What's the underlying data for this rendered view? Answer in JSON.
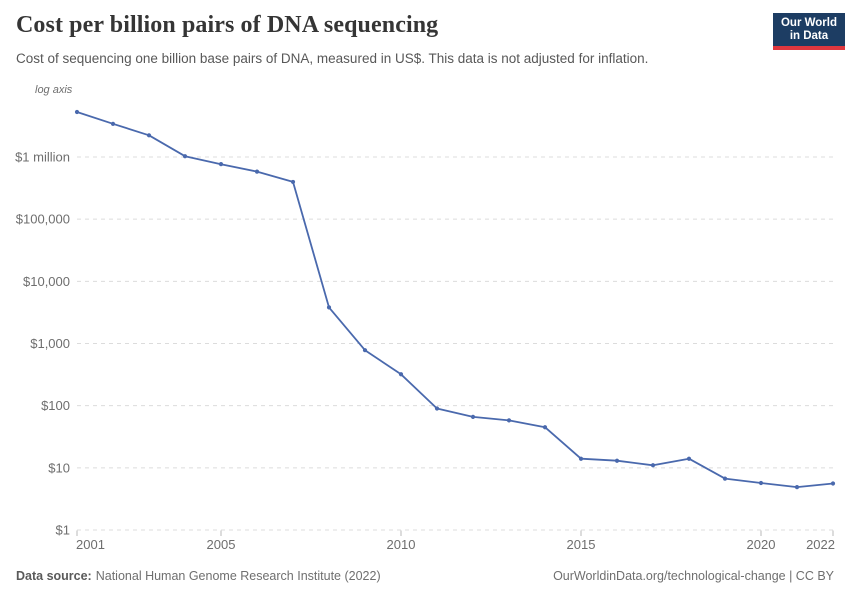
{
  "header": {
    "title": "Cost per billion pairs of DNA sequencing",
    "subtitle": "Cost of sequencing one billion base pairs of DNA, measured in US$. This data is not adjusted for inflation."
  },
  "logo": {
    "line1": "Our World",
    "line2": "in Data",
    "bg_color": "#1d3d63",
    "accent_color": "#e0373e"
  },
  "chart_data": {
    "type": "line",
    "title": "Cost per billion pairs of DNA sequencing",
    "scale": "log",
    "scale_note": "log axis",
    "xlabel": "",
    "ylabel": "",
    "x": [
      2001,
      2002,
      2003,
      2004,
      2005,
      2006,
      2007,
      2008,
      2009,
      2010,
      2011,
      2012,
      2013,
      2014,
      2015,
      2016,
      2017,
      2018,
      2019,
      2020,
      2021,
      2022
    ],
    "values": [
      5292390,
      3413800,
      2230980,
      1028850,
      766730,
      581920,
      397090,
      3810,
      780,
      320,
      90,
      66,
      58,
      45,
      14,
      13,
      11,
      14,
      6.7,
      5.7,
      4.9,
      5.6
    ],
    "y_ticks": [
      {
        "label": "$1 million",
        "value": 1000000
      },
      {
        "label": "$100,000",
        "value": 100000
      },
      {
        "label": "$10,000",
        "value": 10000
      },
      {
        "label": "$1,000",
        "value": 1000
      },
      {
        "label": "$100",
        "value": 100
      },
      {
        "label": "$10",
        "value": 10
      },
      {
        "label": "$1",
        "value": 1
      }
    ],
    "x_ticks": [
      2001,
      2005,
      2010,
      2015,
      2020,
      2022
    ],
    "xlim": [
      2001,
      2022
    ],
    "ylim": [
      1,
      10000000
    ],
    "grid": true,
    "legend": "none",
    "line_color": "#4a69ad",
    "grid_color": "#dcdcdc",
    "axis_text_color": "#6e6e6e",
    "marker": "circle"
  },
  "footer": {
    "source_label": "Data source:",
    "source_text": "National Human Genome Research Institute (2022)",
    "credit": "OurWorldinData.org/technological-change | CC BY"
  }
}
